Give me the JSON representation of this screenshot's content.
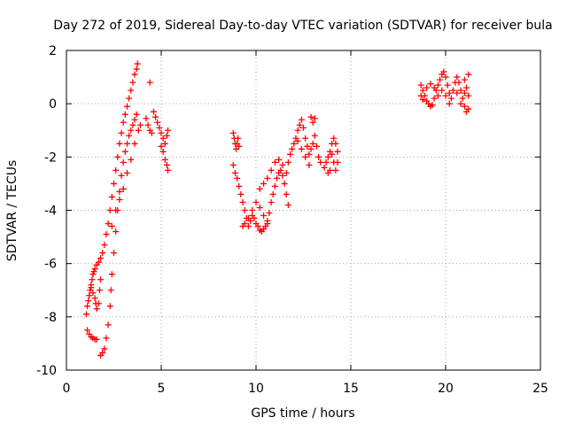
{
  "chart_data": {
    "type": "scatter",
    "title": "Day 272 of 2019, Sidereal Day-to-day VTEC variation (SDTVAR) for receiver bula",
    "xlabel": "GPS time / hours",
    "ylabel": "SDTVAR / TECUs",
    "xlim": [
      0,
      25
    ],
    "ylim": [
      -10,
      2
    ],
    "xticks": [
      "0",
      "5",
      "10",
      "15",
      "20",
      "25"
    ],
    "yticks": [
      "-10",
      "-8",
      "-6",
      "-4",
      "-2",
      "0",
      "2"
    ],
    "xtick_values": [
      0,
      5,
      10,
      15,
      20,
      25
    ],
    "ytick_values": [
      -10,
      -8,
      -6,
      -4,
      -2,
      0,
      2
    ],
    "grid": true,
    "marker": "+",
    "color": "#ff0000",
    "series": [
      {
        "points": [
          [
            1.05,
            -7.9
          ],
          [
            1.1,
            -7.6
          ],
          [
            1.15,
            -7.4
          ],
          [
            1.2,
            -7.2
          ],
          [
            1.25,
            -7.0
          ],
          [
            1.3,
            -6.8
          ],
          [
            1.35,
            -6.6
          ],
          [
            1.4,
            -6.4
          ],
          [
            1.45,
            -6.3
          ],
          [
            1.5,
            -6.2
          ],
          [
            1.6,
            -6.05
          ],
          [
            1.7,
            -5.95
          ],
          [
            1.8,
            -5.8
          ],
          [
            1.9,
            -5.6
          ],
          [
            2.0,
            -5.3
          ],
          [
            2.1,
            -4.9
          ],
          [
            2.2,
            -4.5
          ],
          [
            2.3,
            -4.0
          ],
          [
            2.4,
            -3.5
          ],
          [
            2.5,
            -3.0
          ],
          [
            2.6,
            -2.5
          ],
          [
            2.7,
            -2.0
          ],
          [
            2.8,
            -1.5
          ],
          [
            2.9,
            -1.1
          ],
          [
            3.0,
            -0.7
          ],
          [
            3.1,
            -0.4
          ],
          [
            3.2,
            -0.1
          ],
          [
            3.3,
            0.2
          ],
          [
            3.4,
            0.5
          ],
          [
            3.5,
            0.8
          ],
          [
            3.6,
            1.1
          ],
          [
            3.7,
            1.3
          ],
          [
            3.75,
            1.5
          ],
          [
            1.1,
            -8.5
          ],
          [
            1.2,
            -8.65
          ],
          [
            1.3,
            -8.75
          ],
          [
            1.4,
            -8.8
          ],
          [
            1.5,
            -8.85
          ],
          [
            1.6,
            -8.85
          ],
          [
            1.3,
            -6.9
          ],
          [
            1.4,
            -7.1
          ],
          [
            1.5,
            -7.3
          ],
          [
            1.55,
            -7.5
          ],
          [
            1.6,
            -7.7
          ],
          [
            1.8,
            -9.45
          ],
          [
            1.9,
            -9.35
          ],
          [
            2.0,
            -9.2
          ],
          [
            2.1,
            -8.8
          ],
          [
            2.2,
            -8.3
          ],
          [
            2.3,
            -7.6
          ],
          [
            2.35,
            -7.0
          ],
          [
            2.4,
            -6.4
          ],
          [
            2.5,
            -5.6
          ],
          [
            2.6,
            -4.8
          ],
          [
            2.7,
            -4.0
          ],
          [
            2.8,
            -3.3
          ],
          [
            2.9,
            -2.7
          ],
          [
            3.0,
            -2.2
          ],
          [
            3.1,
            -1.8
          ],
          [
            3.2,
            -1.5
          ],
          [
            3.3,
            -1.2
          ],
          [
            3.4,
            -1.0
          ],
          [
            3.5,
            -0.8
          ],
          [
            3.6,
            -0.6
          ],
          [
            3.7,
            -0.4
          ],
          [
            1.7,
            -7.5
          ],
          [
            1.75,
            -7.0
          ],
          [
            1.8,
            -6.6
          ],
          [
            2.4,
            -4.6
          ],
          [
            2.6,
            -4.0
          ],
          [
            2.8,
            -3.6
          ],
          [
            3.0,
            -3.2
          ],
          [
            3.2,
            -2.6
          ],
          [
            3.4,
            -2.1
          ],
          [
            3.6,
            -1.5
          ],
          [
            3.8,
            -1.0
          ],
          [
            3.9,
            -0.8
          ],
          [
            4.2,
            -0.55
          ],
          [
            4.3,
            -0.8
          ],
          [
            4.4,
            -1.0
          ],
          [
            4.5,
            -1.1
          ],
          [
            4.4,
            0.8
          ],
          [
            4.6,
            -0.3
          ],
          [
            4.7,
            -0.5
          ],
          [
            4.8,
            -0.7
          ],
          [
            4.9,
            -0.9
          ],
          [
            5.0,
            -1.1
          ],
          [
            5.1,
            -1.3
          ],
          [
            5.2,
            -1.5
          ],
          [
            5.3,
            -1.2
          ],
          [
            5.35,
            -1.0
          ],
          [
            5.0,
            -1.6
          ],
          [
            5.1,
            -1.8
          ],
          [
            5.2,
            -2.1
          ],
          [
            5.3,
            -2.3
          ],
          [
            5.35,
            -2.5
          ],
          [
            8.8,
            -1.1
          ],
          [
            8.85,
            -1.3
          ],
          [
            8.9,
            -1.5
          ],
          [
            8.95,
            -1.7
          ],
          [
            9.0,
            -1.5
          ],
          [
            9.05,
            -1.3
          ],
          [
            9.1,
            -1.6
          ],
          [
            8.8,
            -2.3
          ],
          [
            8.9,
            -2.6
          ],
          [
            9.0,
            -2.8
          ],
          [
            9.1,
            -3.1
          ],
          [
            9.2,
            -3.4
          ],
          [
            9.3,
            -3.7
          ],
          [
            9.4,
            -4.0
          ],
          [
            9.5,
            -4.3
          ],
          [
            9.6,
            -4.6
          ],
          [
            9.7,
            -4.4
          ],
          [
            9.8,
            -4.2
          ],
          [
            9.9,
            -4.3
          ],
          [
            10.0,
            -4.5
          ],
          [
            10.1,
            -4.6
          ],
          [
            10.2,
            -4.75
          ],
          [
            10.3,
            -4.8
          ],
          [
            10.4,
            -4.7
          ],
          [
            10.5,
            -4.6
          ],
          [
            10.6,
            -4.4
          ],
          [
            10.7,
            -4.1
          ],
          [
            10.8,
            -3.7
          ],
          [
            10.9,
            -3.4
          ],
          [
            11.0,
            -3.1
          ],
          [
            11.1,
            -2.8
          ],
          [
            11.2,
            -2.6
          ],
          [
            11.3,
            -2.5
          ],
          [
            11.4,
            -2.7
          ],
          [
            11.5,
            -3.0
          ],
          [
            11.6,
            -3.4
          ],
          [
            11.7,
            -3.8
          ],
          [
            9.3,
            -4.6
          ],
          [
            9.4,
            -4.5
          ],
          [
            9.6,
            -4.3
          ],
          [
            9.8,
            -4.0
          ],
          [
            10.0,
            -3.7
          ],
          [
            10.2,
            -3.9
          ],
          [
            10.4,
            -4.2
          ],
          [
            10.6,
            -4.5
          ],
          [
            10.2,
            -3.2
          ],
          [
            10.4,
            -3.0
          ],
          [
            10.6,
            -2.8
          ],
          [
            10.8,
            -2.5
          ],
          [
            11.0,
            -2.2
          ],
          [
            11.2,
            -2.1
          ],
          [
            11.4,
            -2.3
          ],
          [
            11.6,
            -2.6
          ],
          [
            11.7,
            -2.2
          ],
          [
            11.8,
            -1.9
          ],
          [
            11.9,
            -1.7
          ],
          [
            12.0,
            -1.5
          ],
          [
            12.1,
            -1.3
          ],
          [
            12.2,
            -1.0
          ],
          [
            12.3,
            -0.8
          ],
          [
            12.4,
            -0.6
          ],
          [
            12.5,
            -0.9
          ],
          [
            12.6,
            -1.3
          ],
          [
            12.7,
            -1.6
          ],
          [
            12.8,
            -1.9
          ],
          [
            12.9,
            -1.7
          ],
          [
            13.0,
            -1.5
          ],
          [
            13.1,
            -1.2
          ],
          [
            13.2,
            -1.6
          ],
          [
            13.3,
            -2.0
          ],
          [
            13.4,
            -2.2
          ],
          [
            12.8,
            -2.3
          ],
          [
            12.6,
            -2.0
          ],
          [
            12.4,
            -1.7
          ],
          [
            12.2,
            -1.4
          ],
          [
            12.9,
            -0.5
          ],
          [
            13.0,
            -0.7
          ],
          [
            13.1,
            -0.55
          ],
          [
            13.6,
            -2.4
          ],
          [
            13.7,
            -2.2
          ],
          [
            13.8,
            -2.0
          ],
          [
            13.9,
            -1.8
          ],
          [
            14.0,
            -1.5
          ],
          [
            14.1,
            -1.3
          ],
          [
            14.2,
            -1.5
          ],
          [
            14.3,
            -1.8
          ],
          [
            14.3,
            -2.2
          ],
          [
            14.2,
            -2.5
          ],
          [
            14.1,
            -2.2
          ],
          [
            13.9,
            -2.5
          ],
          [
            13.8,
            -2.6
          ],
          [
            14.0,
            -1.9
          ],
          [
            18.7,
            0.7
          ],
          [
            18.8,
            0.5
          ],
          [
            18.9,
            0.3
          ],
          [
            19.0,
            0.1
          ],
          [
            19.1,
            0.0
          ],
          [
            19.2,
            -0.1
          ],
          [
            19.3,
            -0.05
          ],
          [
            19.4,
            0.2
          ],
          [
            19.5,
            0.5
          ],
          [
            19.6,
            0.7
          ],
          [
            19.7,
            0.9
          ],
          [
            19.8,
            1.1
          ],
          [
            19.9,
            1.2
          ],
          [
            20.0,
            1.0
          ],
          [
            20.1,
            0.7
          ],
          [
            20.2,
            0.4
          ],
          [
            20.3,
            0.2
          ],
          [
            20.4,
            0.5
          ],
          [
            20.5,
            0.8
          ],
          [
            20.6,
            1.0
          ],
          [
            20.7,
            0.8
          ],
          [
            20.8,
            0.5
          ],
          [
            20.9,
            0.2
          ],
          [
            21.0,
            -0.1
          ],
          [
            21.1,
            -0.3
          ],
          [
            21.2,
            -0.2
          ],
          [
            21.2,
            0.3
          ],
          [
            21.1,
            0.6
          ],
          [
            21.0,
            0.9
          ],
          [
            21.2,
            1.1
          ],
          [
            18.7,
            0.3
          ],
          [
            18.8,
            0.15
          ],
          [
            19.0,
            0.6
          ],
          [
            19.2,
            0.75
          ],
          [
            19.4,
            0.6
          ],
          [
            19.6,
            0.3
          ],
          [
            19.8,
            0.5
          ],
          [
            20.0,
            0.3
          ],
          [
            20.2,
            0.0
          ],
          [
            20.6,
            0.4
          ],
          [
            20.8,
            0.0
          ],
          [
            21.0,
            0.4
          ]
        ]
      }
    ]
  }
}
